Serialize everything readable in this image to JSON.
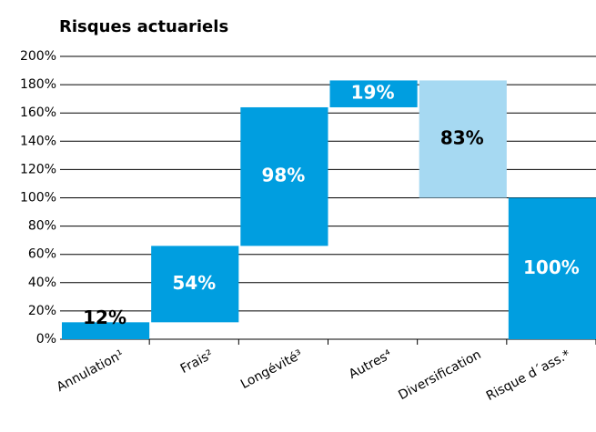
{
  "chart_data": {
    "type": "waterfall",
    "title": "Risques actuariels",
    "categories": [
      "Annulation¹",
      "Frais²",
      "Longévité³",
      "Autres⁴",
      "Diversification",
      "Risque d´ass.*"
    ],
    "values": [
      12,
      54,
      98,
      19,
      -83,
      100
    ],
    "measure": [
      "relative",
      "relative",
      "relative",
      "relative",
      "relative",
      "total"
    ],
    "value_labels": [
      "12%",
      "54%",
      "98%",
      "19%",
      "83%",
      "100%"
    ],
    "color": "#009ee0",
    "negative_color": "#a6d9f2",
    "ylim": [
      0,
      200
    ],
    "yticks": [
      {
        "value": 0,
        "label": "0%"
      },
      {
        "value": 20,
        "label": "20%"
      },
      {
        "value": 40,
        "label": "40%"
      },
      {
        "value": 60,
        "label": "60%"
      },
      {
        "value": 80,
        "label": "80%"
      },
      {
        "value": 100,
        "label": "100%"
      },
      {
        "value": 120,
        "label": "120%"
      },
      {
        "value": 140,
        "label": "140%"
      },
      {
        "value": 160,
        "label": "160%"
      },
      {
        "value": 180,
        "label": "180%"
      },
      {
        "value": 200,
        "label": "200%"
      }
    ],
    "grid": true
  }
}
